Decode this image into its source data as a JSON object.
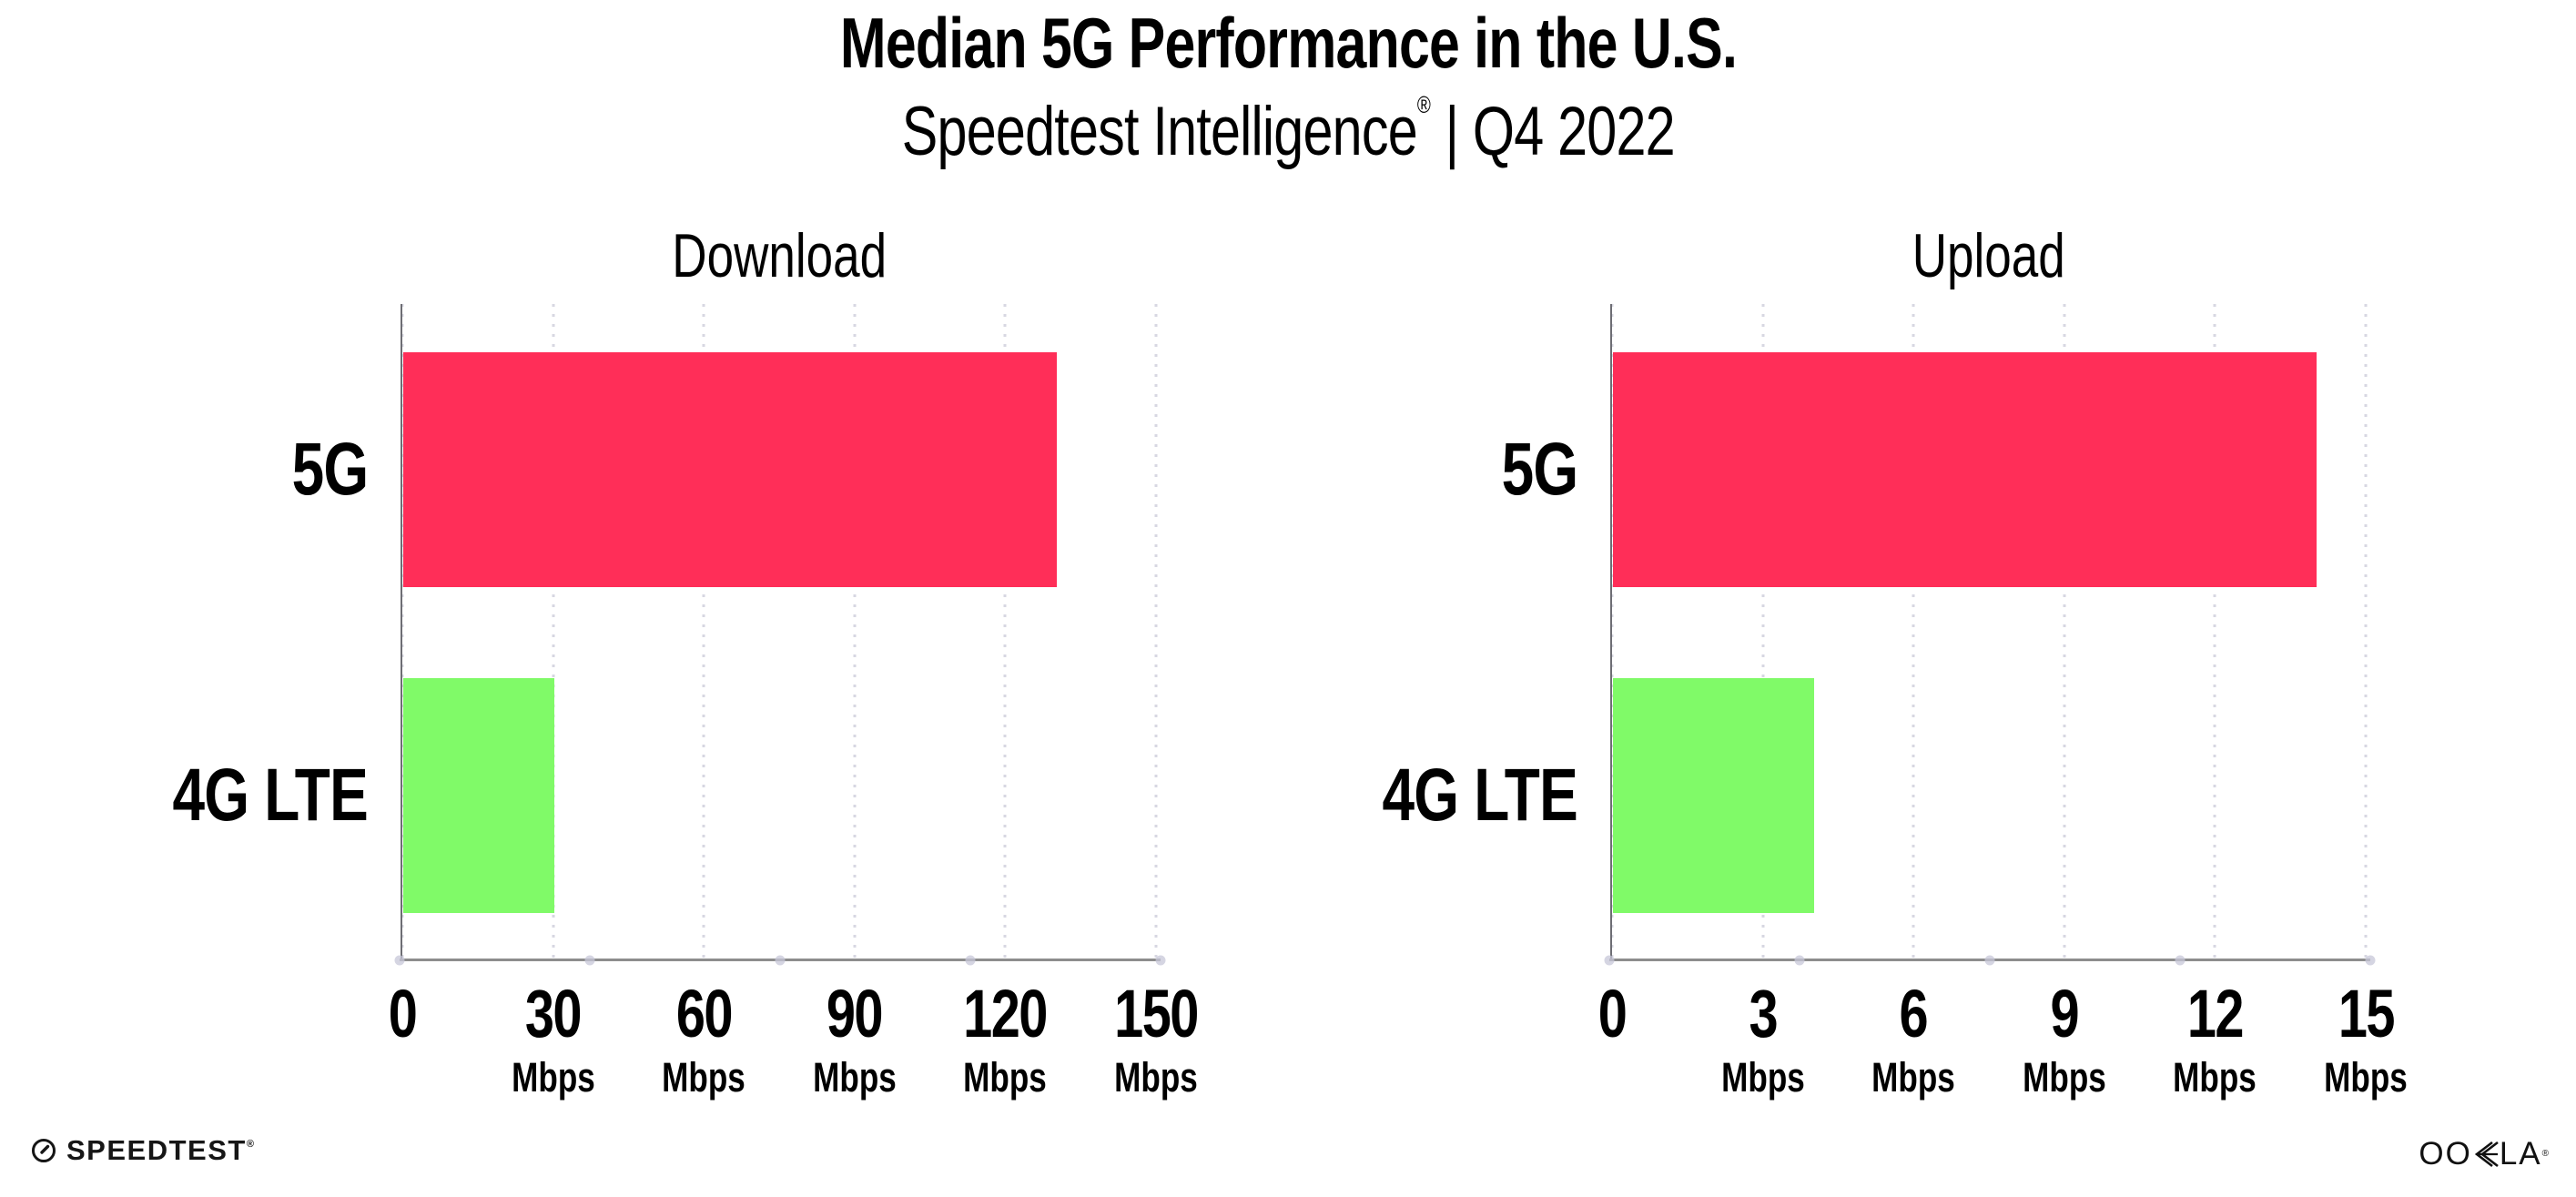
{
  "header": {
    "title": "Median 5G Performance in the U.S.",
    "subtitle_brand": "Speedtest Intelligence",
    "subtitle_reg": "®",
    "subtitle_rest": " | Q4 2022"
  },
  "chart_data": [
    {
      "type": "bar",
      "orientation": "horizontal",
      "title": "Download",
      "categories": [
        "5G",
        "4G LTE"
      ],
      "values": [
        130,
        30
      ],
      "unit": "Mbps",
      "xlim": [
        0,
        150
      ],
      "xticks": [
        0,
        30,
        60,
        90,
        120,
        150
      ],
      "bar_colors": [
        "#FF2E58",
        "#80FA68"
      ],
      "grid": "dotted-vertical",
      "legend": "none"
    },
    {
      "type": "bar",
      "orientation": "horizontal",
      "title": "Upload",
      "categories": [
        "5G",
        "4G LTE"
      ],
      "values": [
        14,
        4
      ],
      "unit": "Mbps",
      "xlim": [
        0,
        15
      ],
      "xticks": [
        0,
        3,
        6,
        9,
        12,
        15
      ],
      "bar_colors": [
        "#FF2E58",
        "#80FA68"
      ],
      "grid": "dotted-vertical",
      "legend": "none"
    }
  ],
  "footer": {
    "speedtest_label": "SPEEDTEST",
    "speedtest_reg": "®",
    "ookla_label_left": "OO",
    "ookla_label_right": "LA",
    "ookla_reg": "®"
  },
  "colors": {
    "bar_5g": "#FF2E58",
    "bar_4g_lte": "#80FA68",
    "gridline_dot": "#D7D7E2",
    "axis_x_line": "#8D8D8D",
    "axis_y_line": "#6E6E74",
    "axis_tick_dot": "#C7C7D8",
    "text": "#000000",
    "background": "#FFFFFF"
  }
}
